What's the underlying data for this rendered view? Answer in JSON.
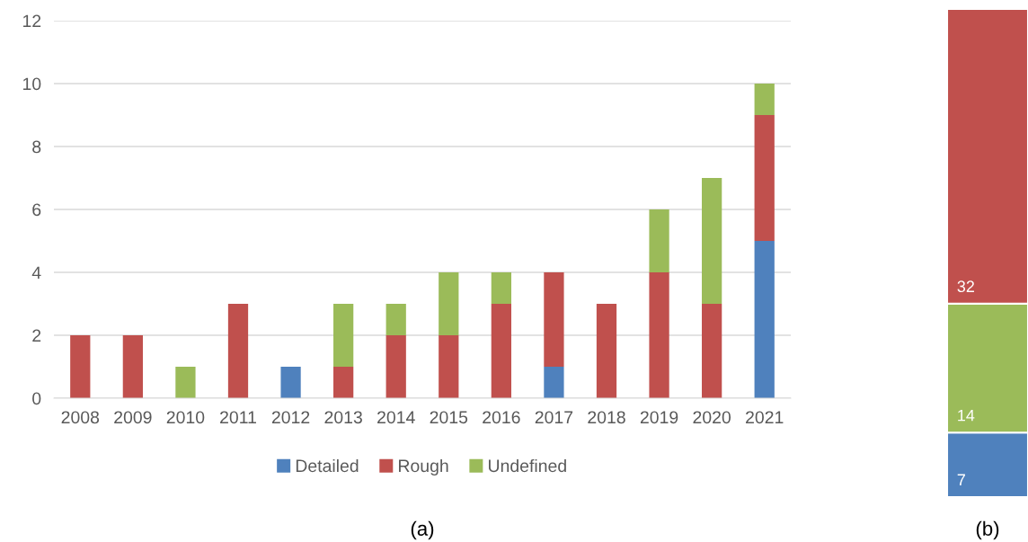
{
  "chart_data": [
    {
      "type": "bar",
      "stacked": true,
      "xlabel": "(a)",
      "categories": [
        "2008",
        "2009",
        "2010",
        "2011",
        "2012",
        "2013",
        "2014",
        "2015",
        "2016",
        "2017",
        "2018",
        "2019",
        "2020",
        "2021"
      ],
      "series": [
        {
          "name": "Detailed",
          "color": "#4f81bd",
          "values": [
            null,
            null,
            null,
            null,
            1,
            null,
            null,
            null,
            null,
            1,
            null,
            null,
            null,
            5
          ]
        },
        {
          "name": "Rough",
          "color": "#c0504d",
          "values": [
            2,
            2,
            null,
            3,
            null,
            1,
            2,
            2,
            3,
            3,
            3,
            4,
            3,
            4
          ]
        },
        {
          "name": "Undefined",
          "color": "#9bbb59",
          "values": [
            null,
            null,
            1,
            null,
            null,
            2,
            1,
            2,
            1,
            null,
            null,
            2,
            4,
            1
          ]
        }
      ],
      "ylim": [
        0,
        12
      ],
      "yticks": [
        0,
        2,
        4,
        6,
        8,
        10,
        12
      ],
      "grid": "y",
      "legend": "bottom"
    },
    {
      "type": "bar",
      "stacked": true,
      "xlabel": "(b)",
      "categories": [
        null
      ],
      "data_labels": true,
      "series": [
        {
          "color": "#4f81bd",
          "values": [
            7
          ]
        },
        {
          "color": "#9bbb59",
          "values": [
            14
          ]
        },
        {
          "color": "#c0504d",
          "values": [
            32
          ]
        }
      ]
    }
  ]
}
